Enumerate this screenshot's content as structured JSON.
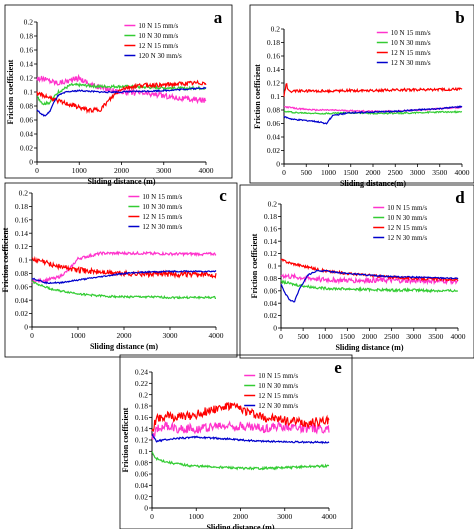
{
  "chart_data": [
    {
      "panel": "a",
      "type": "line",
      "xlabel": "Sliding distance (m)",
      "ylabel": "Friction coefficient",
      "xlim": [
        0,
        4000
      ],
      "ylim": [
        0,
        0.2
      ],
      "xticks": [
        0,
        1000,
        2000,
        3000,
        4000
      ],
      "yticks": [
        0,
        0.02,
        0.04,
        0.06,
        0.08,
        0.1,
        0.12,
        0.14,
        0.16,
        0.18,
        0.2
      ],
      "legend_position": "top-right",
      "series": [
        {
          "name": "10 N 15 mm/s",
          "color": "#ff33cc",
          "x": [
            0,
            200,
            500,
            800,
            1000,
            1300,
            1600,
            2000,
            2500,
            3000,
            3500,
            4000
          ],
          "y": [
            0.12,
            0.118,
            0.113,
            0.117,
            0.12,
            0.11,
            0.105,
            0.1,
            0.098,
            0.095,
            0.09,
            0.088
          ]
        },
        {
          "name": "10 N 30 mm/s",
          "color": "#33cc33",
          "x": [
            0,
            150,
            300,
            500,
            800,
            1000,
            1500,
            2000,
            2500,
            3000,
            3500,
            4000
          ],
          "y": [
            0.093,
            0.083,
            0.085,
            0.1,
            0.11,
            0.11,
            0.108,
            0.108,
            0.107,
            0.106,
            0.105,
            0.106
          ]
        },
        {
          "name": "12 N 15 mm/s",
          "color": "#ff0000",
          "x": [
            0,
            300,
            600,
            900,
            1200,
            1500,
            1800,
            2000,
            2500,
            3000,
            3500,
            4000
          ],
          "y": [
            0.098,
            0.092,
            0.085,
            0.08,
            0.074,
            0.075,
            0.094,
            0.105,
            0.11,
            0.11,
            0.112,
            0.113
          ]
        },
        {
          "name": "120 N 30 mm/s",
          "color": "#0000cc",
          "x": [
            0,
            100,
            200,
            300,
            400,
            500,
            700,
            1000,
            1500,
            2000,
            2500,
            3000,
            3500,
            4000
          ],
          "y": [
            0.075,
            0.068,
            0.066,
            0.072,
            0.085,
            0.095,
            0.1,
            0.102,
            0.1,
            0.1,
            0.101,
            0.102,
            0.104,
            0.106
          ]
        }
      ]
    },
    {
      "panel": "b",
      "type": "line",
      "xlabel": "Sliding distance(m)",
      "ylabel": "Friction coefficient",
      "xlim": [
        0,
        4000
      ],
      "ylim": [
        0,
        0.2
      ],
      "xticks": [
        0,
        500,
        1000,
        1500,
        2000,
        2500,
        3000,
        3500,
        4000
      ],
      "yticks": [
        0,
        0.02,
        0.04,
        0.06,
        0.08,
        0.1,
        0.12,
        0.14,
        0.16,
        0.18,
        0.2
      ],
      "legend_position": "top-right",
      "series": [
        {
          "name": "10 N 15 mm/s",
          "color": "#ff33cc",
          "x": [
            0,
            300,
            700,
            1000,
            1500,
            2000,
            2500,
            3000,
            3500,
            4000
          ],
          "y": [
            0.085,
            0.082,
            0.08,
            0.08,
            0.079,
            0.078,
            0.078,
            0.08,
            0.082,
            0.084
          ]
        },
        {
          "name": "10 N 30 mm/s",
          "color": "#33cc33",
          "x": [
            0,
            300,
            700,
            1000,
            1500,
            2000,
            2500,
            3000,
            3500,
            4000
          ],
          "y": [
            0.078,
            0.076,
            0.075,
            0.075,
            0.076,
            0.075,
            0.075,
            0.076,
            0.077,
            0.077
          ]
        },
        {
          "name": "12 N 15 mm/s",
          "color": "#ff0000",
          "x": [
            0,
            50,
            100,
            200,
            400,
            1000,
            1500,
            2000,
            2500,
            3000,
            3500,
            4000
          ],
          "y": [
            0.1,
            0.12,
            0.108,
            0.108,
            0.108,
            0.108,
            0.109,
            0.109,
            0.11,
            0.11,
            0.11,
            0.111
          ]
        },
        {
          "name": "12 N 30 mm/s",
          "color": "#0000cc",
          "x": [
            0,
            200,
            400,
            600,
            800,
            950,
            1100,
            1500,
            2000,
            2500,
            3000,
            3500,
            4000
          ],
          "y": [
            0.07,
            0.066,
            0.065,
            0.064,
            0.062,
            0.06,
            0.072,
            0.076,
            0.077,
            0.078,
            0.08,
            0.082,
            0.085
          ]
        }
      ]
    },
    {
      "panel": "c",
      "type": "line",
      "xlabel": "Sliding distance (m)",
      "ylabel": "Friction coefficient",
      "xlim": [
        0,
        4000
      ],
      "ylim": [
        0,
        0.2
      ],
      "xticks": [
        0,
        1000,
        2000,
        3000,
        4000
      ],
      "yticks": [
        0,
        0.02,
        0.04,
        0.06,
        0.08,
        0.1,
        0.12,
        0.14,
        0.16,
        0.18,
        0.2
      ],
      "legend_position": "top-right",
      "series": [
        {
          "name": "10 N 15 mm/s",
          "color": "#ff33cc",
          "x": [
            0,
            300,
            600,
            800,
            1000,
            1500,
            2000,
            2500,
            3000,
            3500,
            4000
          ],
          "y": [
            0.068,
            0.07,
            0.075,
            0.085,
            0.102,
            0.11,
            0.11,
            0.11,
            0.109,
            0.109,
            0.109
          ]
        },
        {
          "name": "10 N 30 mm/s",
          "color": "#33cc33",
          "x": [
            0,
            200,
            500,
            800,
            1200,
            1600,
            2000,
            2500,
            3000,
            3500,
            4000
          ],
          "y": [
            0.068,
            0.062,
            0.055,
            0.052,
            0.048,
            0.046,
            0.045,
            0.045,
            0.044,
            0.044,
            0.044
          ]
        },
        {
          "name": "12 N 15 mm/s",
          "color": "#ff0000",
          "x": [
            0,
            200,
            500,
            800,
            1000,
            1500,
            2000,
            2500,
            3000,
            3500,
            4000
          ],
          "y": [
            0.1,
            0.098,
            0.092,
            0.088,
            0.085,
            0.082,
            0.08,
            0.079,
            0.079,
            0.078,
            0.078
          ]
        },
        {
          "name": "12 N 30 mm/s",
          "color": "#0000cc",
          "x": [
            0,
            300,
            600,
            1000,
            1500,
            2000,
            2500,
            3000,
            3500,
            4000
          ],
          "y": [
            0.073,
            0.066,
            0.066,
            0.07,
            0.075,
            0.08,
            0.082,
            0.083,
            0.083,
            0.083
          ]
        }
      ]
    },
    {
      "panel": "d",
      "type": "line",
      "xlabel": "Sliding distance (m)",
      "ylabel": "Friction coefficient",
      "xlim": [
        0,
        4000
      ],
      "ylim": [
        0,
        0.2
      ],
      "xticks": [
        0,
        500,
        1000,
        1500,
        2000,
        2500,
        3000,
        3500,
        4000
      ],
      "yticks": [
        0,
        0.02,
        0.04,
        0.06,
        0.08,
        0.1,
        0.12,
        0.14,
        0.16,
        0.18,
        0.2
      ],
      "legend_position": "top-right",
      "series": [
        {
          "name": "10 N 15 mm/s",
          "color": "#ff33cc",
          "x": [
            0,
            300,
            700,
            1000,
            1500,
            2000,
            2500,
            3000,
            3500,
            4000
          ],
          "y": [
            0.085,
            0.082,
            0.08,
            0.078,
            0.077,
            0.077,
            0.077,
            0.076,
            0.076,
            0.076
          ]
        },
        {
          "name": "10 N 30 mm/s",
          "color": "#33cc33",
          "x": [
            0,
            300,
            700,
            1000,
            1500,
            2000,
            2500,
            3000,
            3500,
            4000
          ],
          "y": [
            0.075,
            0.07,
            0.066,
            0.064,
            0.063,
            0.062,
            0.061,
            0.061,
            0.06,
            0.06
          ]
        },
        {
          "name": "12 N 15 mm/s",
          "color": "#ff0000",
          "x": [
            0,
            200,
            500,
            800,
            1000,
            1500,
            2000,
            2500,
            3000,
            3500,
            4000
          ],
          "y": [
            0.11,
            0.105,
            0.1,
            0.095,
            0.092,
            0.088,
            0.085,
            0.082,
            0.08,
            0.079,
            0.078
          ]
        },
        {
          "name": "12 N 30 mm/s",
          "color": "#0000cc",
          "x": [
            0,
            100,
            200,
            300,
            400,
            600,
            800,
            1000,
            1500,
            2000,
            2500,
            3000,
            3500,
            4000
          ],
          "y": [
            0.07,
            0.055,
            0.045,
            0.042,
            0.06,
            0.085,
            0.092,
            0.092,
            0.088,
            0.085,
            0.083,
            0.082,
            0.081,
            0.08
          ]
        }
      ]
    },
    {
      "panel": "e",
      "type": "line",
      "xlabel": "Sliding distance (m)",
      "ylabel": "Friction coefficient",
      "xlim": [
        0,
        4000
      ],
      "ylim": [
        0,
        0.24
      ],
      "xticks": [
        0,
        1000,
        2000,
        3000,
        4000
      ],
      "yticks": [
        0,
        0.02,
        0.04,
        0.06,
        0.08,
        0.1,
        0.12,
        0.14,
        0.16,
        0.18,
        0.2,
        0.22,
        0.24
      ],
      "legend_position": "top-right",
      "series": [
        {
          "name": "10 N 15 mm/s",
          "color": "#ff33cc",
          "x": [
            0,
            100,
            300,
            600,
            1000,
            1500,
            2000,
            2500,
            3000,
            3500,
            4000
          ],
          "y": [
            0.12,
            0.14,
            0.145,
            0.14,
            0.14,
            0.145,
            0.145,
            0.14,
            0.145,
            0.14,
            0.14
          ]
        },
        {
          "name": "10 N 30 mm/s",
          "color": "#33cc33",
          "x": [
            0,
            50,
            150,
            400,
            800,
            1200,
            1600,
            2000,
            2500,
            3000,
            3500,
            4000
          ],
          "y": [
            0.1,
            0.09,
            0.085,
            0.08,
            0.075,
            0.073,
            0.072,
            0.07,
            0.07,
            0.071,
            0.073,
            0.074
          ]
        },
        {
          "name": "12 N 15 mm/s",
          "color": "#ff0000",
          "x": [
            0,
            100,
            300,
            600,
            1000,
            1400,
            1800,
            2100,
            2500,
            3000,
            3500,
            4000
          ],
          "y": [
            0.13,
            0.16,
            0.162,
            0.16,
            0.165,
            0.175,
            0.18,
            0.172,
            0.16,
            0.155,
            0.15,
            0.155
          ]
        },
        {
          "name": "12 N 30 mm/s",
          "color": "#0000cc",
          "x": [
            0,
            100,
            300,
            600,
            1000,
            1500,
            2000,
            2500,
            3000,
            3500,
            4000
          ],
          "y": [
            0.13,
            0.118,
            0.12,
            0.123,
            0.125,
            0.123,
            0.12,
            0.118,
            0.117,
            0.116,
            0.116
          ]
        }
      ]
    }
  ]
}
